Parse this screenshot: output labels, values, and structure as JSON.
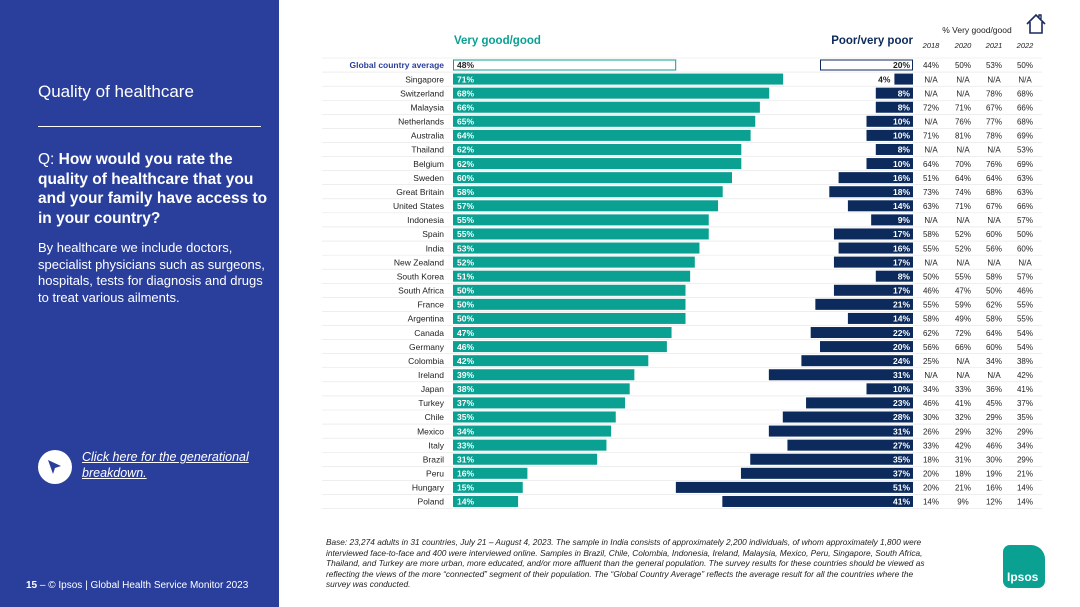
{
  "sidebar": {
    "title": "Quality of healthcare",
    "question_prefix": "Q: ",
    "question": "How would you rate the quality of healthcare that you and your family have access to in your country?",
    "description": "By healthcare we include doctors, specialist physicians such as surgeons, hospitals, tests for diagnosis and drugs to treat various ailments.",
    "link_text": "Click here for the generational breakdown."
  },
  "footer": {
    "page_number": "15",
    "text": " – © Ipsos | Global Health Service Monitor 2023"
  },
  "base_note": "Base: 23,274 adults in 31 countries, July 21 – August 4, 2023. The sample in India consists of approximately 2,200 individuals, of whom approximately 1,800 were interviewed face-to-face and 400 were interviewed online. Samples in Brazil, Chile, Colombia, Indonesia, Ireland, Malaysia, Mexico, Peru, Singapore, South Africa, Thailand, and Turkey are more urban, more educated, and/or more affluent than the general population. The survey results for these countries should be viewed as reflecting the views of the more “connected” segment of their population. The “Global Country Average” reflects the average result for all the countries where the survey was conducted.",
  "logo_text": "Ipsos",
  "colors": {
    "sidebar": "#2a3f9c",
    "good": "#0aa192",
    "poor": "#0c2a5b",
    "good_header": "#0aa192",
    "poor_header": "#0c2a5b"
  },
  "chart_data": {
    "type": "bar",
    "title": "",
    "good_label": "Very good/good",
    "poor_label": "Poor/very poor",
    "trend_label": "% Very good/good",
    "years": [
      "2018",
      "2020",
      "2021",
      "2022"
    ],
    "categories": [
      "Global country average",
      "Singapore",
      "Switzerland",
      "Malaysia",
      "Netherlands",
      "Australia",
      "Thailand",
      "Belgium",
      "Sweden",
      "Great Britain",
      "United States",
      "Indonesia",
      "Spain",
      "India",
      "New Zealand",
      "South Korea",
      "South Africa",
      "France",
      "Argentina",
      "Canada",
      "Germany",
      "Colombia",
      "Ireland",
      "Japan",
      "Turkey",
      "Chile",
      "Mexico",
      "Italy",
      "Brazil",
      "Peru",
      "Hungary",
      "Poland"
    ],
    "series": [
      {
        "name": "Very good/good",
        "values": [
          48,
          71,
          68,
          66,
          65,
          64,
          62,
          62,
          60,
          58,
          57,
          55,
          55,
          53,
          52,
          51,
          50,
          50,
          50,
          47,
          46,
          42,
          39,
          38,
          37,
          35,
          34,
          33,
          31,
          16,
          15,
          14
        ]
      },
      {
        "name": "Poor/very poor",
        "values": [
          20,
          4,
          8,
          8,
          10,
          10,
          8,
          10,
          16,
          18,
          14,
          9,
          17,
          16,
          17,
          8,
          17,
          21,
          14,
          22,
          20,
          24,
          31,
          10,
          23,
          28,
          31,
          27,
          35,
          37,
          51,
          41
        ]
      }
    ],
    "trend": [
      [
        "44%",
        "50%",
        "53%",
        "50%"
      ],
      [
        "N/A",
        "N/A",
        "N/A",
        "N/A"
      ],
      [
        "N/A",
        "N/A",
        "78%",
        "68%"
      ],
      [
        "72%",
        "71%",
        "67%",
        "66%"
      ],
      [
        "N/A",
        "76%",
        "77%",
        "68%"
      ],
      [
        "71%",
        "81%",
        "78%",
        "69%"
      ],
      [
        "N/A",
        "N/A",
        "N/A",
        "53%"
      ],
      [
        "64%",
        "70%",
        "76%",
        "69%"
      ],
      [
        "51%",
        "64%",
        "64%",
        "63%"
      ],
      [
        "73%",
        "74%",
        "68%",
        "63%"
      ],
      [
        "63%",
        "71%",
        "67%",
        "66%"
      ],
      [
        "N/A",
        "N/A",
        "N/A",
        "57%"
      ],
      [
        "58%",
        "52%",
        "60%",
        "50%"
      ],
      [
        "55%",
        "52%",
        "56%",
        "60%"
      ],
      [
        "N/A",
        "N/A",
        "N/A",
        "N/A"
      ],
      [
        "50%",
        "55%",
        "58%",
        "57%"
      ],
      [
        "46%",
        "47%",
        "50%",
        "46%"
      ],
      [
        "55%",
        "59%",
        "62%",
        "55%"
      ],
      [
        "58%",
        "49%",
        "58%",
        "55%"
      ],
      [
        "62%",
        "72%",
        "64%",
        "54%"
      ],
      [
        "56%",
        "66%",
        "60%",
        "54%"
      ],
      [
        "25%",
        "N/A",
        "34%",
        "38%"
      ],
      [
        "N/A",
        "N/A",
        "N/A",
        "42%"
      ],
      [
        "34%",
        "33%",
        "36%",
        "41%"
      ],
      [
        "46%",
        "41%",
        "45%",
        "37%"
      ],
      [
        "30%",
        "32%",
        "29%",
        "35%"
      ],
      [
        "26%",
        "29%",
        "32%",
        "29%"
      ],
      [
        "33%",
        "42%",
        "46%",
        "34%"
      ],
      [
        "18%",
        "31%",
        "30%",
        "29%"
      ],
      [
        "20%",
        "18%",
        "19%",
        "21%"
      ],
      [
        "20%",
        "21%",
        "16%",
        "14%"
      ],
      [
        "14%",
        "9%",
        "12%",
        "14%"
      ]
    ]
  }
}
